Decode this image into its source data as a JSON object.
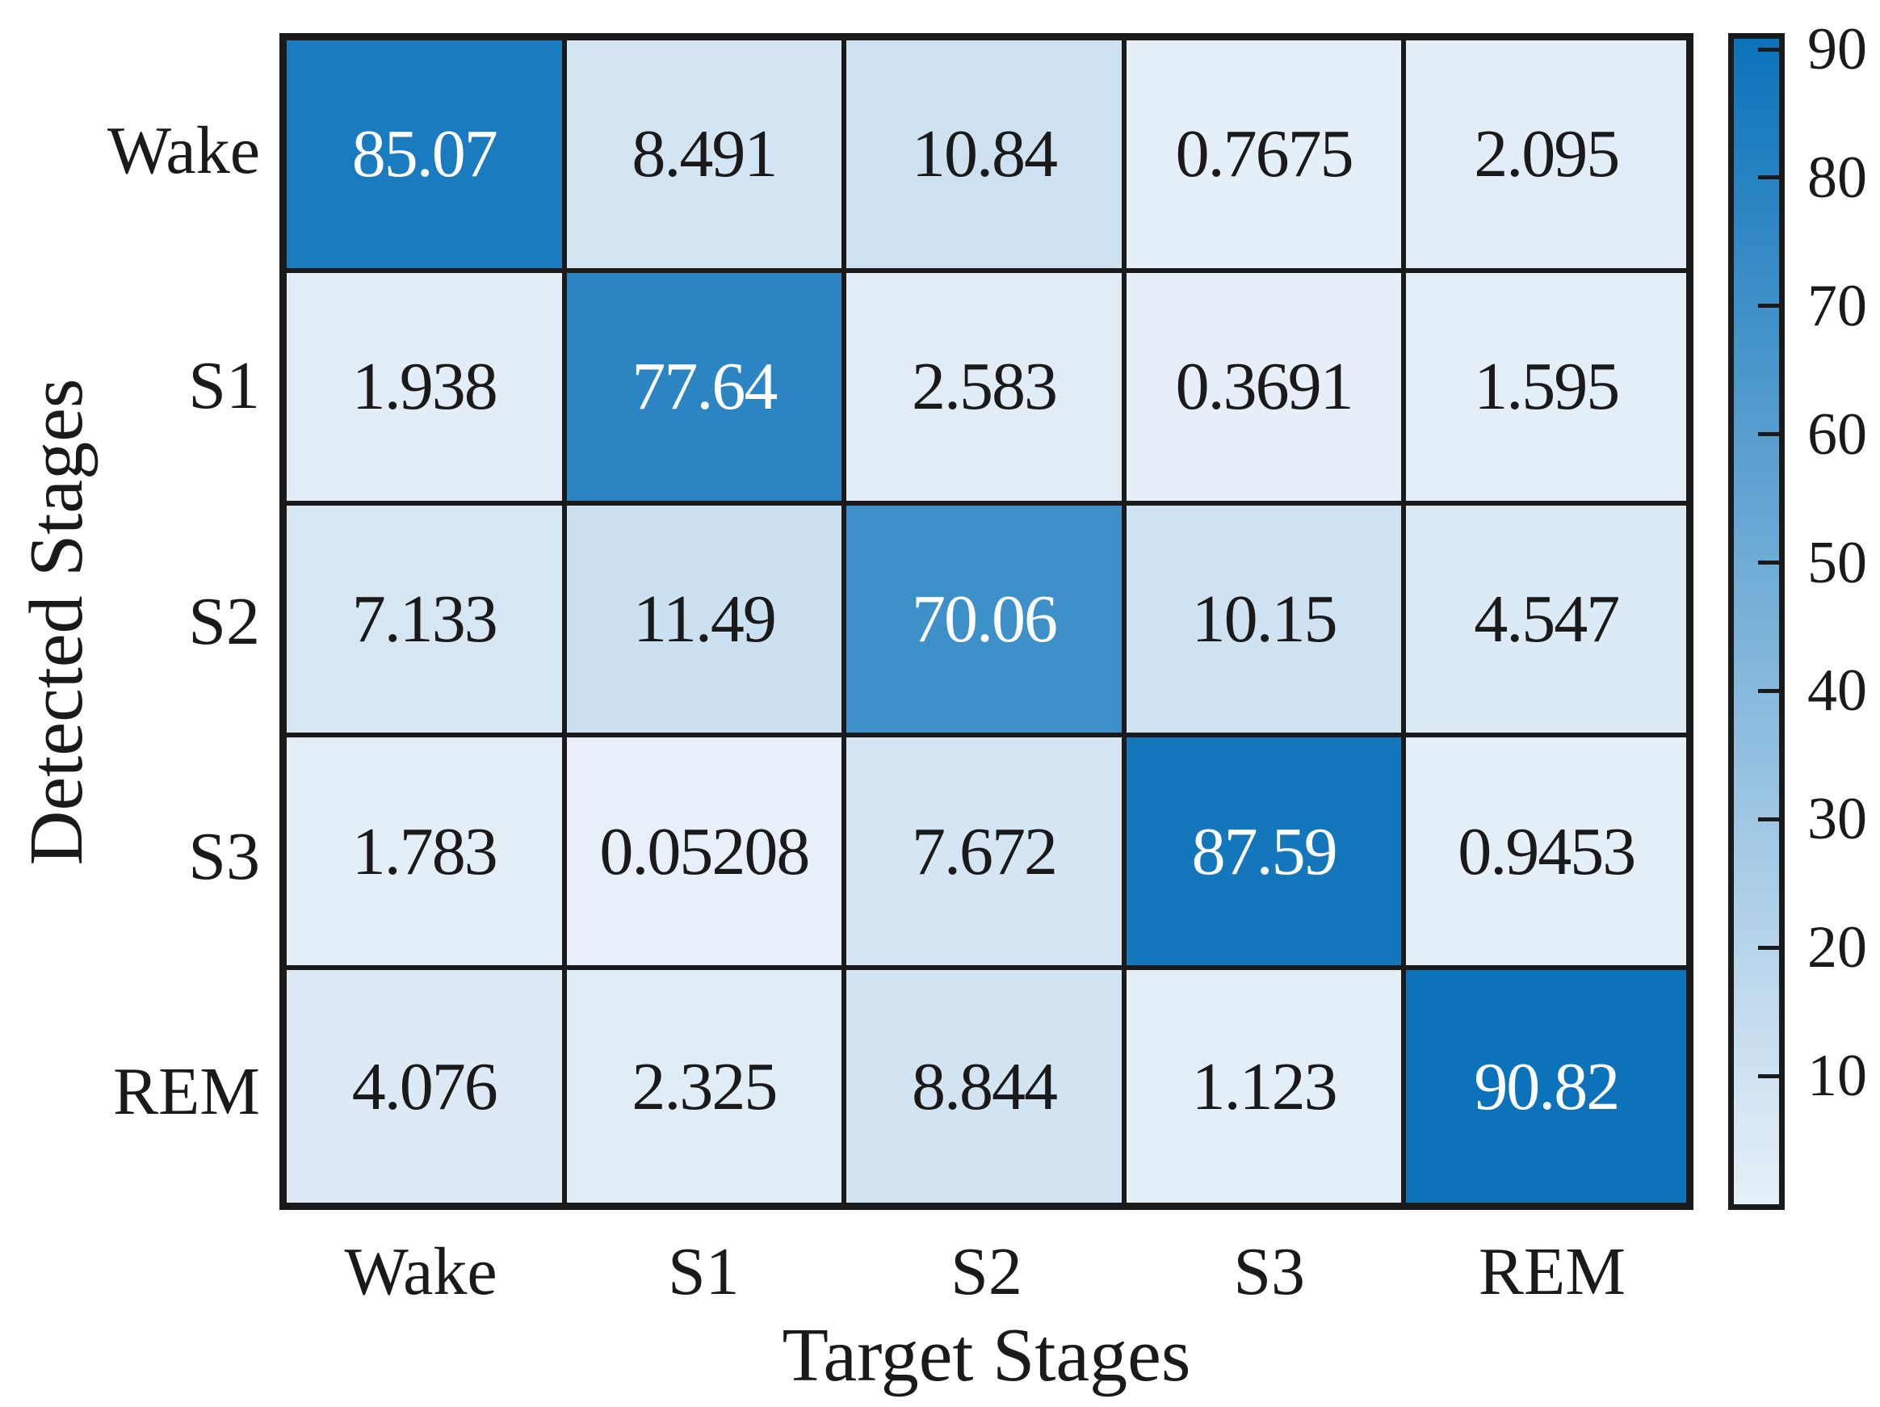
{
  "chart_data": {
    "type": "heatmap",
    "subtype": "confusion-matrix",
    "title": "",
    "xlabel": "Target Stages",
    "ylabel": "Detected Stages",
    "x_categories": [
      "Wake",
      "S1",
      "S2",
      "S3",
      "REM"
    ],
    "y_categories": [
      "Wake",
      "S1",
      "S2",
      "S3",
      "REM"
    ],
    "values": [
      [
        85.07,
        8.491,
        10.84,
        0.7675,
        2.095
      ],
      [
        1.938,
        77.64,
        2.583,
        0.3691,
        1.595
      ],
      [
        7.133,
        11.49,
        70.06,
        10.15,
        4.547
      ],
      [
        1.783,
        0.05208,
        7.672,
        87.59,
        0.9453
      ],
      [
        4.076,
        2.325,
        8.844,
        1.123,
        90.82
      ]
    ],
    "cell_labels": [
      [
        "85.07",
        "8.491",
        "10.84",
        "0.7675",
        "2.095"
      ],
      [
        "1.938",
        "77.64",
        "2.583",
        "0.3691",
        "1.595"
      ],
      [
        "7.133",
        "11.49",
        "70.06",
        "10.15",
        "4.547"
      ],
      [
        "1.783",
        "0.05208",
        "7.672",
        "87.59",
        "0.9453"
      ],
      [
        "4.076",
        "2.325",
        "8.844",
        "1.123",
        "90.82"
      ]
    ],
    "colorbar": {
      "min": 0,
      "max": 90.82,
      "ticks": [
        10,
        20,
        30,
        40,
        50,
        60,
        70,
        80,
        90
      ],
      "tick_labels": [
        "10",
        "20",
        "30",
        "40",
        "50",
        "60",
        "70",
        "80",
        "90"
      ],
      "color_low": "#E7F0F8",
      "color_high": "#0C73BA",
      "position": "right"
    },
    "grid": "on",
    "grid_color": "#1a1a1a",
    "text_color_dark": "#1a1a1a",
    "text_color_light": "#ffffff",
    "white_text_threshold": 0.55
  }
}
